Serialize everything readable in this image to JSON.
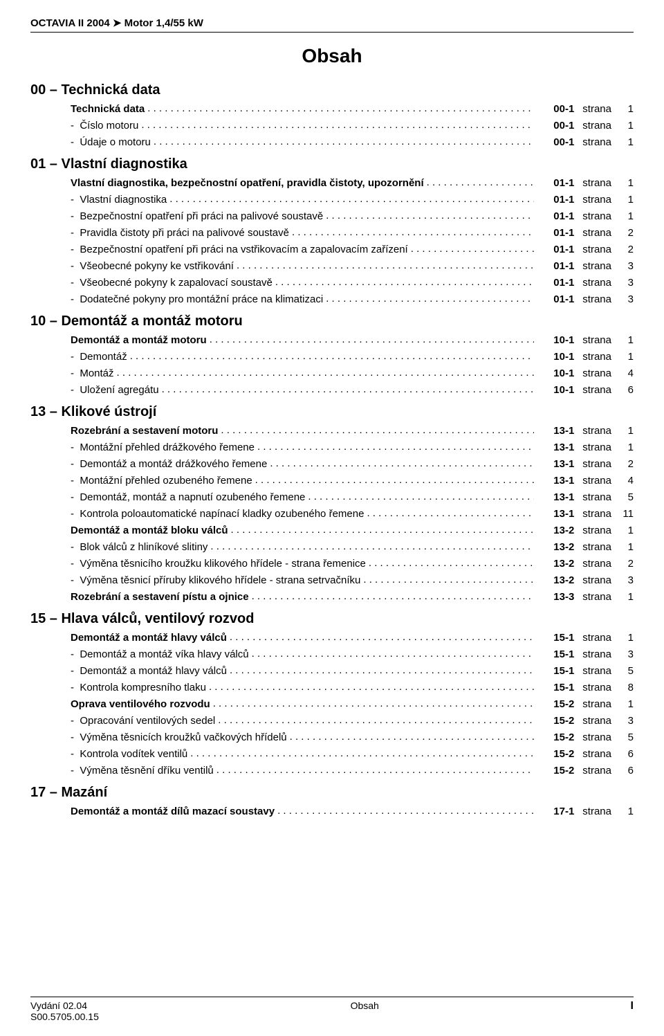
{
  "doc": {
    "header": "OCTAVIA II 2004 ➤ Motor 1,4/55 kW",
    "title": "Obsah",
    "strana_word": "strana",
    "footer": {
      "left_line1": "Vydání 02.04",
      "left_line2": "S00.5705.00.15",
      "center": "Obsah",
      "right": "I"
    }
  },
  "colors": {
    "text": "#000000",
    "background": "#ffffff",
    "rule": "#000000"
  },
  "fonts": {
    "family": "Arial",
    "title_size_pt": 21,
    "section_size_pt": 15,
    "body_size_pt": 11,
    "footer_size_pt": 10
  },
  "sections": [
    {
      "heading": "00 – Technická data",
      "groups": [
        {
          "label": "Technická data",
          "chapter": "00-1",
          "page": "1",
          "items": [
            {
              "label": "Číslo motoru",
              "chapter": "00-1",
              "page": "1"
            },
            {
              "label": "Údaje o motoru",
              "chapter": "00-1",
              "page": "1"
            }
          ]
        }
      ]
    },
    {
      "heading": "01 – Vlastní diagnostika",
      "groups": [
        {
          "label": "Vlastní diagnostika, bezpečnostní opatření, pravidla čistoty, upozornění",
          "chapter": "01-1",
          "page": "1",
          "items": [
            {
              "label": "Vlastní diagnostika",
              "chapter": "01-1",
              "page": "1"
            },
            {
              "label": "Bezpečnostní opatření při práci na palivové soustavě",
              "chapter": "01-1",
              "page": "1"
            },
            {
              "label": "Pravidla čistoty při práci na palivové soustavě",
              "chapter": "01-1",
              "page": "2"
            },
            {
              "label": "Bezpečnostní opatření při práci na vstřikovacím a zapalovacím zařízení",
              "chapter": "01-1",
              "page": "2"
            },
            {
              "label": "Všeobecné pokyny ke vstřikování",
              "chapter": "01-1",
              "page": "3"
            },
            {
              "label": "Všeobecné pokyny k zapalovací soustavě",
              "chapter": "01-1",
              "page": "3"
            },
            {
              "label": "Dodatečné pokyny pro montážní práce na klimatizaci",
              "chapter": "01-1",
              "page": "3"
            }
          ]
        }
      ]
    },
    {
      "heading": "10 – Demontáž a montáž motoru",
      "groups": [
        {
          "label": "Demontáž a montáž motoru",
          "chapter": "10-1",
          "page": "1",
          "items": [
            {
              "label": "Demontáž",
              "chapter": "10-1",
              "page": "1"
            },
            {
              "label": "Montáž",
              "chapter": "10-1",
              "page": "4"
            },
            {
              "label": "Uložení agregátu",
              "chapter": "10-1",
              "page": "6"
            }
          ]
        }
      ]
    },
    {
      "heading": "13 – Klikové ústrojí",
      "groups": [
        {
          "label": "Rozebrání a sestavení motoru",
          "chapter": "13-1",
          "page": "1",
          "items": [
            {
              "label": "Montážní přehled drážkového řemene",
              "chapter": "13-1",
              "page": "1"
            },
            {
              "label": "Demontáž a montáž drážkového řemene",
              "chapter": "13-1",
              "page": "2"
            },
            {
              "label": "Montážní přehled ozubeného řemene",
              "chapter": "13-1",
              "page": "4"
            },
            {
              "label": "Demontáž, montáž a napnutí ozubeného řemene",
              "chapter": "13-1",
              "page": "5"
            },
            {
              "label": "Kontrola poloautomatické napínací kladky ozubeného řemene",
              "chapter": "13-1",
              "page": "11"
            }
          ]
        },
        {
          "label": "Demontáž a montáž bloku válců",
          "chapter": "13-2",
          "page": "1",
          "items": [
            {
              "label": "Blok válců z hliníkové slitiny",
              "chapter": "13-2",
              "page": "1"
            },
            {
              "label": "Výměna těsnicího kroužku klikového hřídele - strana řemenice",
              "chapter": "13-2",
              "page": "2"
            },
            {
              "label": "Výměna těsnicí příruby klikového hřídele - strana setrvačníku",
              "chapter": "13-2",
              "page": "3"
            }
          ]
        },
        {
          "label": "Rozebrání a sestavení pístu a ojnice",
          "chapter": "13-3",
          "page": "1",
          "items": []
        }
      ]
    },
    {
      "heading": "15 – Hlava válců, ventilový rozvod",
      "groups": [
        {
          "label": "Demontáž a montáž hlavy válců",
          "chapter": "15-1",
          "page": "1",
          "items": [
            {
              "label": "Demontáž a montáž víka hlavy válců",
              "chapter": "15-1",
              "page": "3"
            },
            {
              "label": "Demontáž a montáž hlavy válců",
              "chapter": "15-1",
              "page": "5"
            },
            {
              "label": "Kontrola kompresního tlaku",
              "chapter": "15-1",
              "page": "8"
            }
          ]
        },
        {
          "label": "Oprava ventilového rozvodu",
          "chapter": "15-2",
          "page": "1",
          "items": [
            {
              "label": "Opracování ventilových sedel",
              "chapter": "15-2",
              "page": "3"
            },
            {
              "label": "Výměna těsnicích kroužků vačkových hřídelů",
              "chapter": "15-2",
              "page": "5"
            },
            {
              "label": "Kontrola vodítek ventilů",
              "chapter": "15-2",
              "page": "6"
            },
            {
              "label": "Výměna těsnění dříku ventilů",
              "chapter": "15-2",
              "page": "6"
            }
          ]
        }
      ]
    },
    {
      "heading": "17 – Mazání",
      "groups": [
        {
          "label": "Demontáž a montáž dílů mazací soustavy",
          "chapter": "17-1",
          "page": "1",
          "items": []
        }
      ]
    }
  ]
}
